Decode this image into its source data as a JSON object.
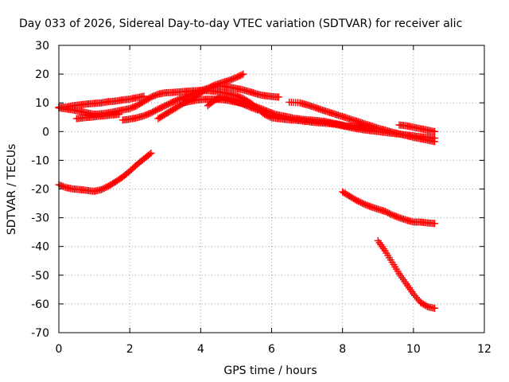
{
  "chart_data": {
    "type": "scatter",
    "title": "Day 033 of 2026, Sidereal Day-to-day VTEC variation (SDTVAR) for receiver alic",
    "xlabel": "GPS time / hours",
    "ylabel": "SDTVAR / TECUs",
    "xlim": [
      0,
      12
    ],
    "ylim": [
      -70,
      30
    ],
    "xticks": [
      0,
      2,
      4,
      6,
      8,
      10,
      12
    ],
    "yticks": [
      -70,
      -60,
      -50,
      -40,
      -30,
      -20,
      -10,
      0,
      10,
      20,
      30
    ],
    "grid": true,
    "marker": "plus",
    "color": "#ff0000",
    "series": [
      {
        "x": [
          0.0,
          0.2,
          0.4,
          0.6,
          0.8,
          1.0,
          1.2,
          1.4,
          1.6,
          1.8,
          2.0,
          2.2,
          2.4,
          2.6
        ],
        "y": [
          -18.5,
          -19.5,
          -20.0,
          -20.2,
          -20.5,
          -20.8,
          -20.2,
          -19.0,
          -17.5,
          -15.8,
          -13.8,
          -11.5,
          -9.5,
          -7.5
        ]
      },
      {
        "x": [
          0.0,
          0.2,
          0.4,
          0.6,
          0.8,
          1.0,
          1.2,
          1.4,
          1.6,
          1.8,
          2.0,
          2.2,
          2.4
        ],
        "y": [
          8.5,
          8.5,
          9.0,
          9.3,
          9.6,
          9.8,
          10.0,
          10.4,
          10.6,
          11.0,
          11.3,
          11.8,
          12.3
        ]
      },
      {
        "x": [
          0.0,
          0.2,
          0.4,
          0.6,
          0.8,
          1.0,
          1.2,
          1.4,
          1.6,
          1.8,
          2.0,
          2.2,
          2.4,
          2.6,
          2.8,
          3.0,
          3.2,
          3.4,
          3.6,
          3.8,
          4.0,
          4.2,
          4.4,
          4.6,
          4.8,
          5.0,
          5.2,
          5.4,
          5.6,
          5.8,
          6.0,
          6.2,
          6.4,
          6.6,
          6.8,
          7.0,
          7.2,
          7.4,
          7.6,
          7.8,
          8.0,
          8.2,
          8.4,
          8.6,
          8.8,
          9.0,
          9.2,
          9.4,
          9.6,
          9.8,
          10.0,
          10.2,
          10.4,
          10.6
        ],
        "y": [
          8.2,
          7.9,
          7.5,
          7.0,
          6.5,
          6.0,
          6.2,
          6.5,
          7.0,
          7.5,
          8.0,
          9.0,
          10.5,
          12.0,
          13.0,
          13.5,
          13.6,
          13.8,
          14.0,
          14.2,
          14.3,
          14.2,
          14.0,
          13.6,
          13.2,
          12.5,
          11.5,
          10.0,
          8.0,
          6.0,
          4.8,
          4.5,
          4.2,
          4.0,
          3.8,
          3.5,
          3.2,
          3.0,
          2.8,
          2.5,
          2.0,
          1.5,
          1.0,
          0.6,
          0.3,
          0.0,
          -0.3,
          -0.6,
          -0.9,
          -1.2,
          -1.5,
          -1.8,
          -2.0,
          -2.3
        ]
      },
      {
        "x": [
          0.5,
          0.7,
          0.9,
          1.1,
          1.3,
          1.5,
          1.7
        ],
        "y": [
          4.5,
          4.8,
          5.0,
          5.3,
          5.5,
          5.8,
          6.0
        ]
      },
      {
        "x": [
          1.8,
          2.0,
          2.2,
          2.4,
          2.6,
          2.8,
          3.0,
          3.2,
          3.4,
          3.6,
          3.8,
          4.0,
          4.2,
          4.4,
          4.6,
          4.8,
          5.0,
          5.2,
          5.4,
          5.6,
          5.8,
          6.0,
          6.2
        ],
        "y": [
          4.0,
          4.3,
          4.8,
          5.5,
          6.5,
          7.8,
          9.0,
          10.2,
          11.3,
          12.3,
          13.3,
          14.3,
          15.0,
          15.6,
          15.8,
          15.5,
          15.0,
          14.5,
          13.8,
          13.0,
          12.5,
          12.2,
          12.0
        ]
      },
      {
        "x": [
          2.8,
          3.0,
          3.2,
          3.4,
          3.6,
          3.8,
          4.0,
          4.2,
          4.4,
          4.6,
          4.8,
          5.0,
          5.2
        ],
        "y": [
          4.5,
          6.0,
          7.5,
          9.0,
          10.5,
          12.0,
          13.5,
          15.0,
          16.2,
          17.0,
          17.8,
          18.8,
          20.0
        ]
      },
      {
        "x": [
          3.5,
          3.7,
          3.9,
          4.1,
          4.3,
          4.5,
          4.7,
          4.9,
          5.1,
          5.3,
          5.5,
          5.7,
          5.9,
          6.1,
          6.3,
          6.5,
          6.7,
          6.9,
          7.1,
          7.3,
          7.5,
          7.7,
          7.9,
          8.1,
          8.3,
          8.5,
          8.7,
          8.9
        ],
        "y": [
          10.0,
          10.5,
          11.0,
          11.2,
          11.3,
          11.2,
          11.0,
          10.5,
          10.0,
          9.5,
          8.8,
          8.0,
          7.0,
          6.0,
          5.5,
          5.0,
          4.5,
          4.2,
          4.0,
          3.8,
          3.5,
          3.0,
          2.5,
          2.0,
          1.8,
          1.5,
          1.2,
          1.0
        ]
      },
      {
        "x": [
          4.2,
          4.4,
          4.6,
          4.8,
          5.0,
          5.2,
          5.4,
          5.6
        ],
        "y": [
          9.0,
          11.0,
          12.0,
          11.5,
          10.5,
          9.5,
          8.5,
          7.5
        ]
      },
      {
        "x": [
          6.5,
          6.8,
          7.0,
          7.2,
          7.4,
          7.6,
          7.8,
          8.0,
          8.2,
          8.4,
          8.6,
          8.8,
          9.0,
          9.2,
          9.4,
          9.6,
          9.8,
          10.0,
          10.2,
          10.4,
          10.6
        ],
        "y": [
          10.2,
          10.0,
          9.3,
          8.5,
          7.6,
          6.8,
          6.0,
          5.2,
          4.4,
          3.6,
          2.8,
          2.0,
          1.2,
          0.5,
          -0.2,
          -0.8,
          -1.4,
          -2.0,
          -2.5,
          -3.0,
          -3.5
        ]
      },
      {
        "x": [
          9.6,
          9.8,
          10.0,
          10.2,
          10.4,
          10.6
        ],
        "y": [
          2.3,
          2.0,
          1.5,
          1.0,
          0.5,
          0.0
        ]
      },
      {
        "x": [
          8.0,
          8.2,
          8.4,
          8.6,
          8.8,
          9.0,
          9.2,
          9.4,
          9.6,
          9.8,
          10.0,
          10.2,
          10.4,
          10.6
        ],
        "y": [
          -21.0,
          -22.5,
          -24.0,
          -25.2,
          -26.2,
          -27.0,
          -27.8,
          -29.0,
          -30.0,
          -30.8,
          -31.5,
          -31.5,
          -31.8,
          -32.0
        ]
      },
      {
        "x": [
          9.0,
          9.2,
          9.4,
          9.6,
          9.8,
          10.0,
          10.2,
          10.4,
          10.6
        ],
        "y": [
          -38.0,
          -41.5,
          -45.5,
          -49.5,
          -53.0,
          -56.5,
          -59.5,
          -61.0,
          -61.5
        ]
      }
    ]
  }
}
